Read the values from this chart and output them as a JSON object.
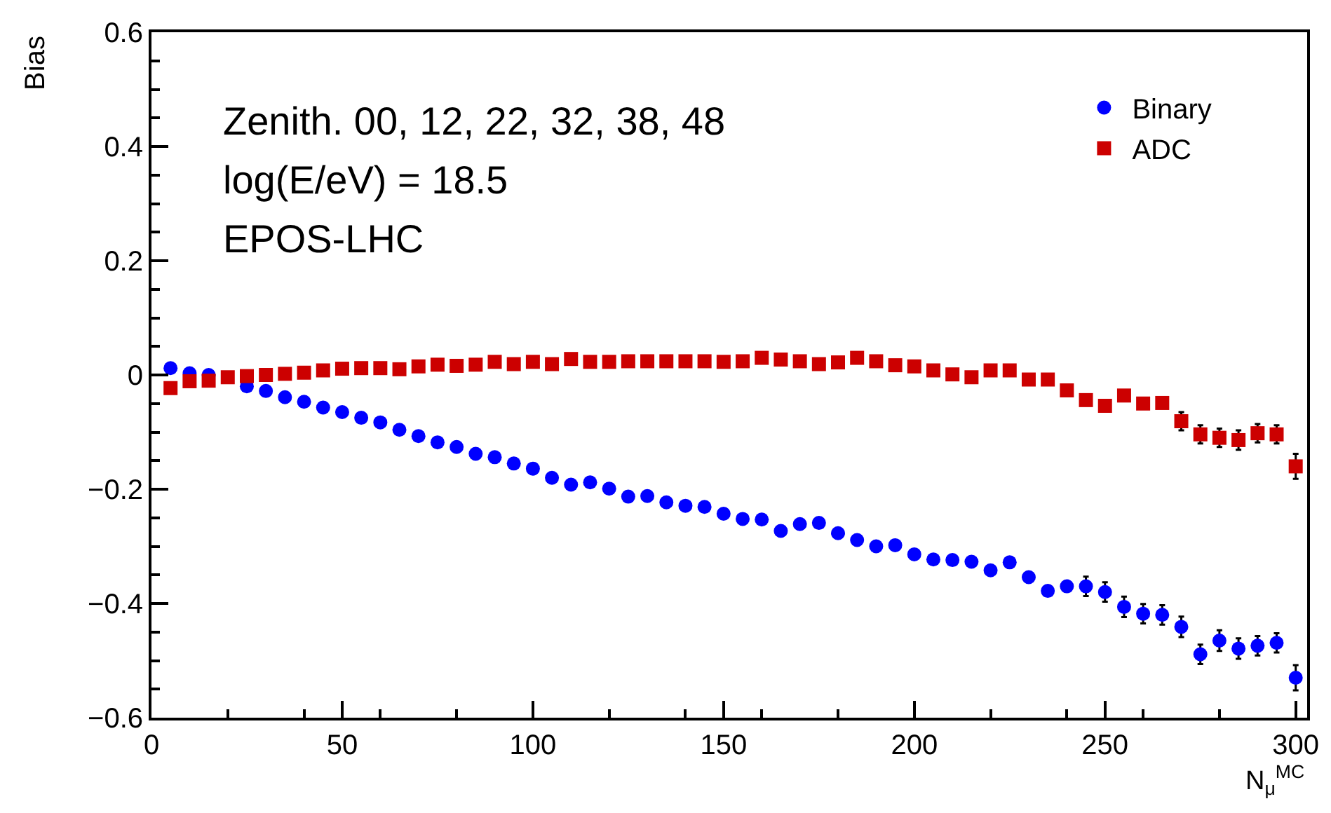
{
  "chart_data": {
    "type": "scatter",
    "xlabel": "N$_{μ}$$^{MC}$",
    "ylabel": "Bias",
    "annotations": [
      "Zenith. 00, 12, 22, 32, 38, 48",
      "log(E/eV) = 18.5",
      "EPOS-LHC"
    ],
    "x": [
      5,
      10,
      15,
      20,
      25,
      30,
      35,
      40,
      45,
      50,
      55,
      60,
      65,
      70,
      75,
      80,
      85,
      90,
      95,
      100,
      105,
      110,
      115,
      120,
      125,
      130,
      135,
      140,
      145,
      150,
      155,
      160,
      165,
      170,
      175,
      180,
      185,
      190,
      195,
      200,
      205,
      210,
      215,
      220,
      225,
      230,
      235,
      240,
      245,
      250,
      255,
      260,
      265,
      270,
      275,
      280,
      285,
      290,
      295,
      300
    ],
    "series": [
      {
        "name": "Binary",
        "color": "#0000ff",
        "marker": "circle",
        "values": [
          0.012,
          0.003,
          0.0,
          null,
          -0.02,
          -0.028,
          -0.039,
          -0.047,
          -0.057,
          -0.065,
          -0.075,
          -0.083,
          -0.096,
          -0.107,
          -0.118,
          -0.126,
          -0.138,
          -0.144,
          -0.155,
          -0.164,
          -0.18,
          -0.192,
          -0.188,
          -0.199,
          -0.213,
          -0.212,
          -0.223,
          -0.229,
          -0.231,
          -0.243,
          -0.252,
          -0.253,
          -0.273,
          -0.261,
          -0.259,
          -0.277,
          -0.289,
          -0.3,
          -0.298,
          -0.314,
          -0.323,
          -0.324,
          -0.327,
          -0.342,
          -0.328,
          -0.354,
          -0.378,
          -0.37,
          -0.37,
          -0.38,
          -0.406,
          -0.418,
          -0.42,
          -0.441,
          -0.489,
          -0.465,
          -0.479,
          -0.474,
          -0.469,
          -0.53
        ],
        "errors": [
          null,
          null,
          null,
          null,
          null,
          null,
          null,
          null,
          null,
          null,
          null,
          null,
          null,
          null,
          null,
          null,
          null,
          null,
          null,
          null,
          null,
          null,
          null,
          null,
          null,
          null,
          null,
          null,
          null,
          null,
          null,
          null,
          null,
          null,
          null,
          null,
          null,
          null,
          null,
          null,
          null,
          null,
          null,
          null,
          null,
          null,
          null,
          null,
          0.017,
          0.017,
          0.018,
          0.017,
          0.017,
          0.018,
          0.017,
          0.018,
          0.018,
          0.017,
          0.017,
          0.022
        ]
      },
      {
        "name": "ADC",
        "color": "#cc0000",
        "marker": "square",
        "values": [
          -0.023,
          -0.011,
          -0.01,
          -0.004,
          -0.002,
          0.0,
          0.002,
          0.004,
          0.008,
          0.011,
          0.012,
          0.012,
          0.01,
          0.015,
          0.018,
          0.016,
          0.018,
          0.023,
          0.019,
          0.023,
          0.019,
          0.028,
          0.023,
          0.023,
          0.024,
          0.024,
          0.024,
          0.024,
          0.024,
          0.023,
          0.024,
          0.03,
          0.027,
          0.024,
          0.019,
          0.022,
          0.03,
          0.024,
          0.017,
          0.015,
          0.008,
          0.001,
          -0.004,
          0.008,
          0.008,
          -0.008,
          -0.008,
          -0.027,
          -0.044,
          -0.054,
          -0.036,
          -0.05,
          -0.049,
          -0.081,
          -0.104,
          -0.11,
          -0.114,
          -0.102,
          -0.104,
          -0.16
        ],
        "errors": [
          null,
          null,
          null,
          null,
          null,
          null,
          null,
          null,
          null,
          null,
          null,
          null,
          null,
          null,
          null,
          null,
          null,
          null,
          null,
          null,
          null,
          null,
          null,
          null,
          null,
          null,
          null,
          null,
          null,
          null,
          null,
          null,
          null,
          null,
          null,
          null,
          null,
          null,
          null,
          null,
          null,
          null,
          null,
          null,
          null,
          null,
          null,
          null,
          null,
          null,
          null,
          null,
          null,
          0.016,
          0.016,
          0.016,
          0.017,
          0.016,
          0.016,
          0.022
        ]
      }
    ],
    "xlim": [
      0,
      303
    ],
    "ylim": [
      -0.6,
      0.6
    ],
    "xticks": [
      0,
      50,
      100,
      150,
      200,
      250,
      300
    ],
    "yticks": [
      {
        "value": -0.6,
        "label": "−0.6"
      },
      {
        "value": -0.4,
        "label": "−0.4"
      },
      {
        "value": -0.2,
        "label": "−0.2"
      },
      0,
      0.2,
      0.4,
      0.6
    ],
    "legend": "top right"
  }
}
